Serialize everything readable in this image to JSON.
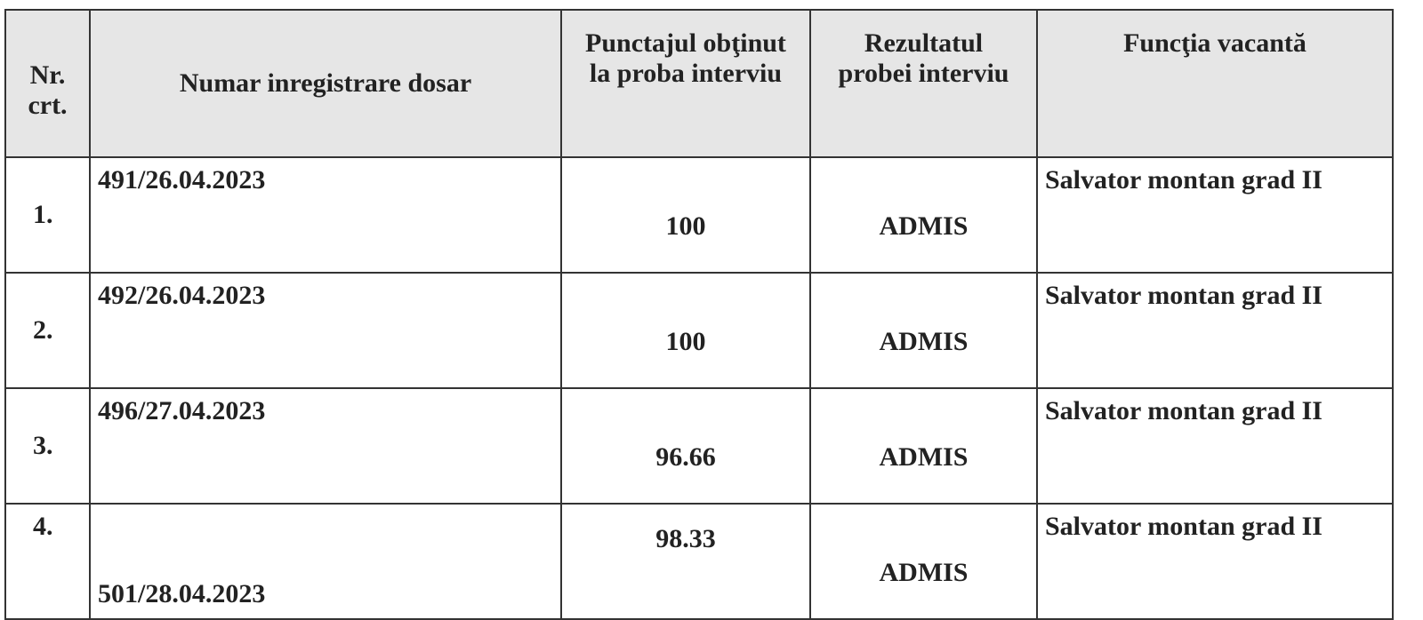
{
  "table": {
    "header": [
      "Nr. crt.",
      "Numar inregistrare dosar",
      "Punctajul obţinut la proba interviu",
      "Rezultatul probei interviu",
      "Funcţia vacantă"
    ],
    "rows": [
      [
        "1.",
        "491/26.04.2023",
        100,
        "ADMIS",
        "Salvator montan grad II"
      ],
      [
        "2.",
        "492/26.04.2023",
        100,
        "ADMIS",
        "Salvator montan grad II"
      ],
      [
        "3.",
        "496/27.04.2023",
        96.66,
        "ADMIS",
        "Salvator montan grad II"
      ],
      [
        "4.",
        "501/28.04.2023",
        98.33,
        "ADMIS",
        "Salvator montan grad II"
      ]
    ]
  }
}
